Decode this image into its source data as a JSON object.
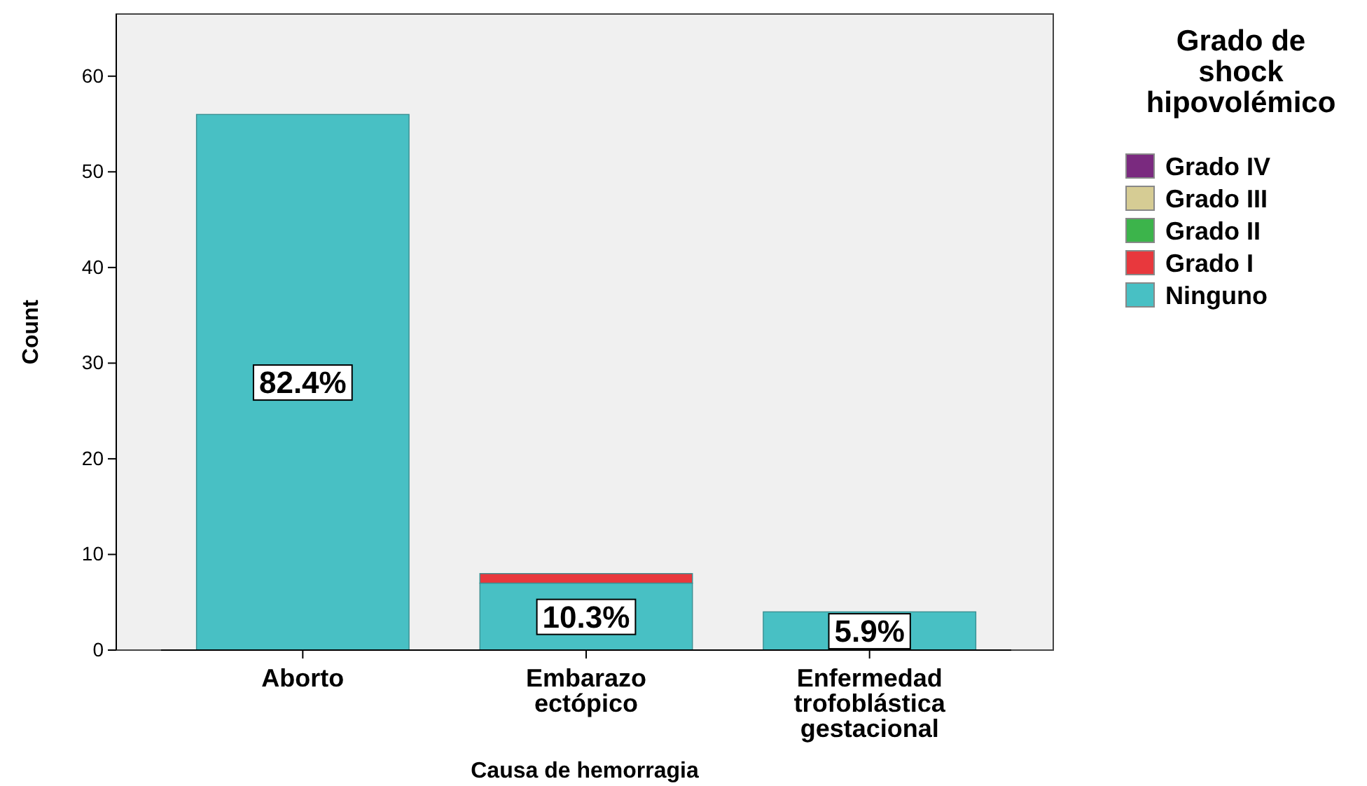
{
  "chart_data": {
    "type": "bar",
    "stacked": true,
    "xlabel": "Causa de hemorragia",
    "ylabel": "Count",
    "legend_title": "Grado de shock hipovolémico",
    "categories": [
      "Aborto",
      "Embarazo ectópico",
      "Enfermedad trofoblástica gestacional"
    ],
    "series": [
      {
        "name": "Ninguno",
        "color": "#48c0c4",
        "values": [
          56,
          7,
          4
        ]
      },
      {
        "name": "Grado I",
        "color": "#e8383d",
        "values": [
          0,
          1,
          0
        ]
      },
      {
        "name": "Grado II",
        "color": "#3cb44b",
        "values": [
          0,
          0,
          0
        ]
      },
      {
        "name": "Grado III",
        "color": "#d6cc94",
        "values": [
          0,
          0,
          0
        ]
      },
      {
        "name": "Grado IV",
        "color": "#7a2a7f",
        "values": [
          0,
          0,
          0
        ]
      }
    ],
    "annotations": [
      "82.4%",
      "10.3%",
      "5.9%"
    ],
    "ylim": [
      0,
      66.5
    ],
    "yticks": [
      0,
      10,
      20,
      30,
      40,
      50,
      60
    ],
    "grid": false,
    "legend": "right"
  }
}
